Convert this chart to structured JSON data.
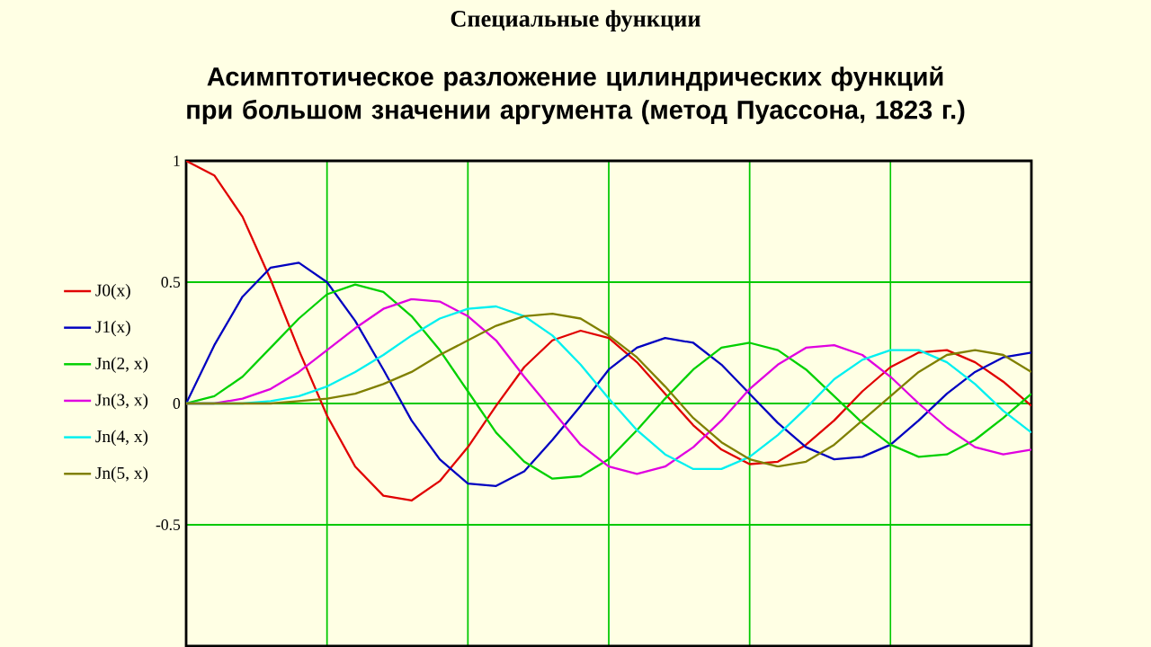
{
  "chart_data": {
    "type": "line",
    "title": "Специальные функции",
    "subtitle": "Асимптотическое разложение цилиндрических функций при большом значении аргумента (метод Пуассона, 1823 г.)",
    "categories": [
      null,
      null,
      null,
      null,
      null,
      null,
      null,
      null,
      null,
      null,
      null,
      null,
      null,
      null,
      null,
      null,
      null,
      null,
      null,
      null,
      null,
      null,
      null,
      null,
      null,
      null,
      null,
      null,
      null,
      null,
      null
    ],
    "series": [
      {
        "name": "J0(x)",
        "color": "#e00000",
        "values": [
          1,
          0.94,
          0.77,
          0.51,
          0.22,
          -0.05,
          -0.26,
          -0.38,
          -0.4,
          -0.32,
          -0.18,
          -0.01,
          0.15,
          0.26,
          0.3,
          0.27,
          0.17,
          0.04,
          -0.09,
          -0.19,
          -0.25,
          -0.24,
          -0.17,
          -0.07,
          0.05,
          0.15,
          0.21,
          0.22,
          0.17,
          0.09,
          -0.01
        ]
      },
      {
        "name": "J1(x)",
        "color": "#0000c0",
        "values": [
          0,
          0.24,
          0.44,
          0.56,
          0.58,
          0.5,
          0.34,
          0.14,
          -0.07,
          -0.23,
          -0.33,
          -0.34,
          -0.28,
          -0.15,
          -0.01,
          0.14,
          0.23,
          0.27,
          0.25,
          0.16,
          0.04,
          -0.08,
          -0.18,
          -0.23,
          -0.22,
          -0.17,
          -0.07,
          0.04,
          0.13,
          0.19,
          0.21
        ]
      },
      {
        "name": "Jn(2, x)",
        "color": "#00d000",
        "values": [
          0,
          0.03,
          0.11,
          0.23,
          0.35,
          0.45,
          0.49,
          0.46,
          0.36,
          0.22,
          0.05,
          -0.12,
          -0.24,
          -0.31,
          -0.3,
          -0.23,
          -0.11,
          0.02,
          0.14,
          0.23,
          0.25,
          0.22,
          0.14,
          0.03,
          -0.08,
          -0.17,
          -0.22,
          -0.21,
          -0.15,
          -0.06,
          0.04
        ]
      },
      {
        "name": "Jn(3, x)",
        "color": "#e000e0",
        "values": [
          0,
          0.0,
          0.02,
          0.06,
          0.13,
          0.22,
          0.31,
          0.39,
          0.43,
          0.42,
          0.36,
          0.26,
          0.11,
          -0.03,
          -0.17,
          -0.26,
          -0.29,
          -0.26,
          -0.18,
          -0.07,
          0.06,
          0.16,
          0.23,
          0.24,
          0.2,
          0.11,
          0.0,
          -0.1,
          -0.18,
          -0.21,
          -0.19
        ]
      },
      {
        "name": "Jn(4, x)",
        "color": "#00f0f0",
        "values": [
          0,
          0.0,
          0.0,
          0.01,
          0.03,
          0.07,
          0.13,
          0.2,
          0.28,
          0.35,
          0.39,
          0.4,
          0.36,
          0.28,
          0.16,
          0.02,
          -0.11,
          -0.21,
          -0.27,
          -0.27,
          -0.22,
          -0.13,
          -0.02,
          0.1,
          0.18,
          0.22,
          0.22,
          0.17,
          0.08,
          -0.03,
          -0.12
        ]
      },
      {
        "name": "Jn(5, x)",
        "color": "#808000",
        "values": [
          0,
          0.0,
          0.0,
          0.0,
          0.01,
          0.02,
          0.04,
          0.08,
          0.13,
          0.2,
          0.26,
          0.32,
          0.36,
          0.37,
          0.35,
          0.28,
          0.19,
          0.07,
          -0.06,
          -0.16,
          -0.23,
          -0.26,
          -0.24,
          -0.17,
          -0.07,
          0.03,
          0.13,
          0.2,
          0.22,
          0.2,
          0.13
        ]
      }
    ],
    "ylim": [
      -1,
      1
    ],
    "yticks": [
      -0.5,
      0,
      0.5,
      1
    ],
    "tick_labels": "y",
    "grid": true,
    "legend": "left",
    "line_style": "solid",
    "marker": "none"
  }
}
